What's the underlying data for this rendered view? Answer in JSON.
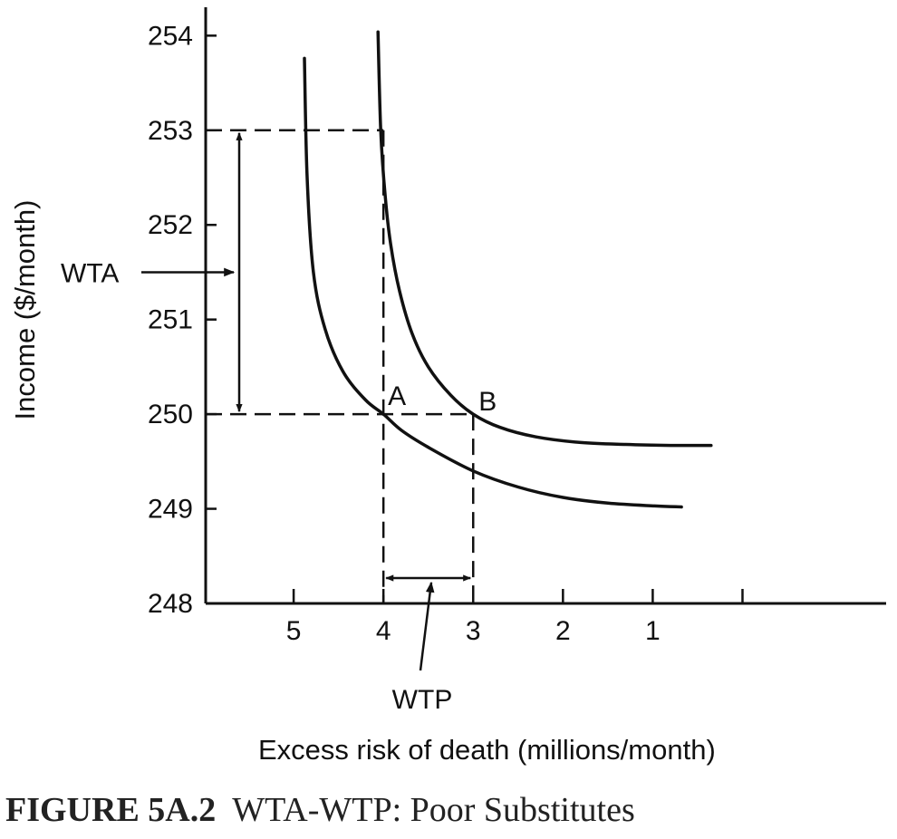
{
  "chart_data": {
    "type": "line",
    "xlabel": "Excess risk of death (millions/month)",
    "ylabel": "Income ($/month)",
    "x_ticks": [
      "5",
      "4",
      "3",
      "2",
      "1"
    ],
    "x_tick_values": [
      5,
      4,
      3,
      2,
      1
    ],
    "y_ticks": [
      "248",
      "249",
      "250",
      "251",
      "252",
      "253",
      "254"
    ],
    "y_tick_values": [
      248,
      249,
      250,
      251,
      252,
      253,
      254
    ],
    "xlim": [
      5.98,
      -1.6
    ],
    "ylim": [
      248,
      254.3
    ],
    "x_reversed": true,
    "series": [
      {
        "name": "",
        "x": [
          4.88,
          4.85,
          4.78,
          4.65,
          4.45,
          4.2,
          4.0,
          3.8,
          3.5,
          3.0,
          2.5,
          2.0,
          1.5,
          0.98,
          0.68
        ],
        "y": [
          253.76,
          252.5,
          251.5,
          250.9,
          250.45,
          250.15,
          250.0,
          249.83,
          249.65,
          249.4,
          249.23,
          249.12,
          249.06,
          249.03,
          249.02
        ]
      },
      {
        "name": "",
        "x": [
          4.06,
          4.03,
          3.98,
          3.92,
          3.82,
          3.68,
          3.5,
          3.25,
          3.0,
          2.7,
          2.3,
          1.8,
          1.3,
          0.8,
          0.35
        ],
        "y": [
          254.04,
          253.0,
          252.3,
          251.8,
          251.3,
          250.85,
          250.5,
          250.2,
          250.0,
          249.86,
          249.76,
          249.7,
          249.68,
          249.67,
          249.67
        ]
      }
    ],
    "guides": {
      "wta_top": 253,
      "base_income": 250,
      "point_a_risk": 4,
      "point_b_risk": 3
    },
    "annotations": {
      "point_a": "A",
      "point_b": "B",
      "wta": "WTA",
      "wtp": "WTP"
    },
    "grid": false,
    "legend": "none"
  },
  "caption": {
    "figure_label": "FIGURE 5A.2",
    "title": "WTA-WTP: Poor Substitutes"
  }
}
